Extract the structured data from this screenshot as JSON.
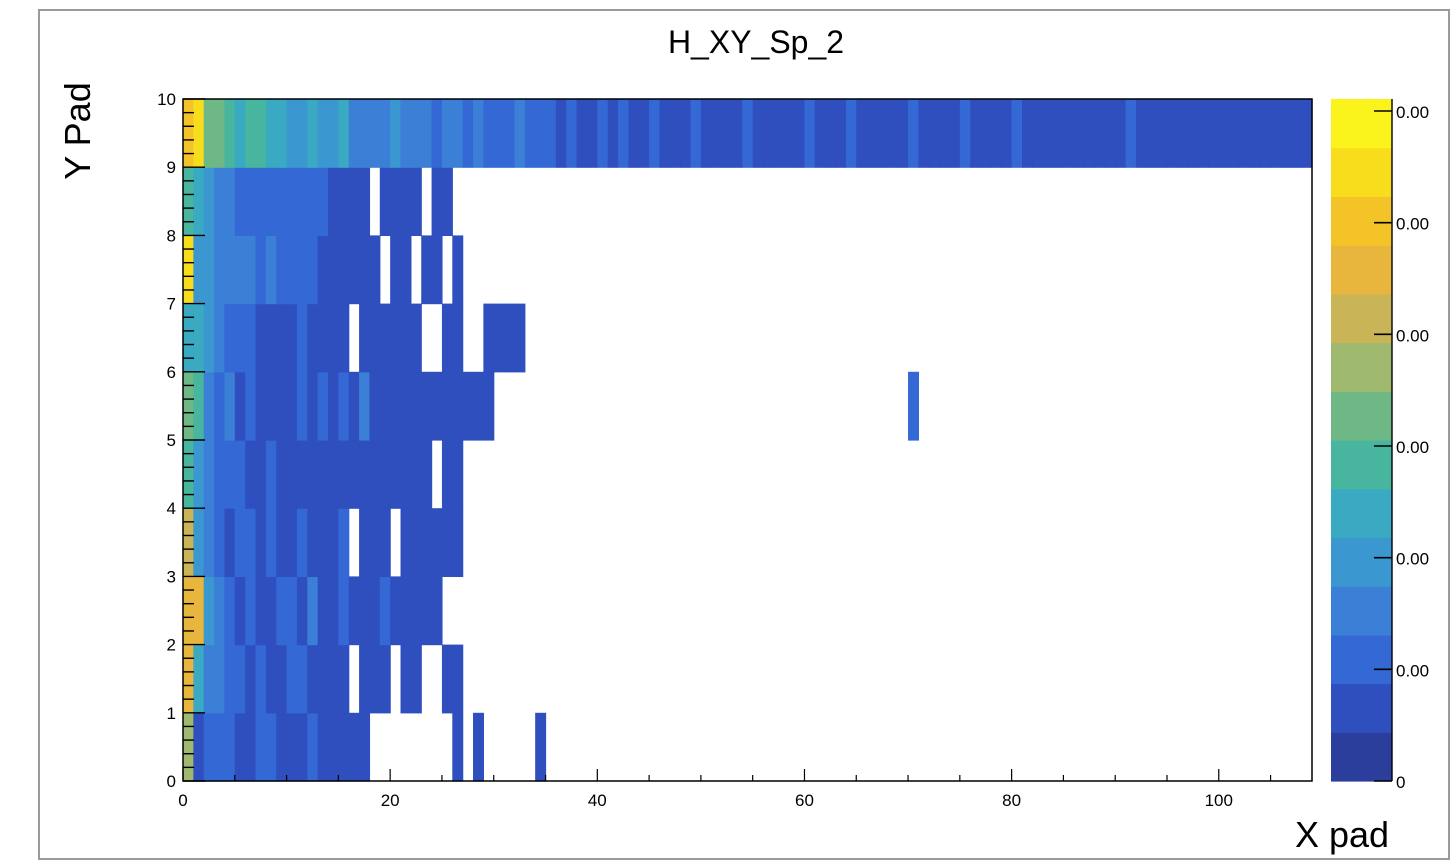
{
  "chart_data": {
    "type": "heatmap",
    "title": "H_XY_Sp_2",
    "xlabel": "X pad",
    "ylabel": "Y Pad",
    "x_range": [
      0,
      109
    ],
    "y_range": [
      0,
      10
    ],
    "x_ticks": [
      "0",
      "20",
      "40",
      "60",
      "80",
      "100"
    ],
    "y_ticks": [
      "0",
      "1",
      "2",
      "3",
      "4",
      "5",
      "6",
      "7",
      "8",
      "9",
      "10"
    ],
    "z_ticks": [
      "0",
      "0.00",
      "0.00",
      "0.00",
      "0.00",
      "0.00",
      "0.00"
    ],
    "colorscale": [
      "#2b3e9c",
      "#2f4fbe",
      "#3468d4",
      "#3b80d6",
      "#3b97cf",
      "#3aa9c2",
      "#48b69e",
      "#6db885",
      "#9fba6e",
      "#c9b457",
      "#e8b53d",
      "#f4c327",
      "#f8dd1c",
      "#fbf31c"
    ],
    "rows": [
      [
        8,
        1,
        2,
        2,
        2,
        1,
        1,
        2,
        2,
        1,
        1,
        1,
        2,
        1,
        1,
        1,
        1,
        1,
        0,
        0,
        0,
        0,
        0,
        0,
        0,
        0,
        1,
        0,
        1,
        0,
        0,
        0,
        0,
        0,
        1,
        0,
        0,
        0,
        0,
        0,
        0,
        0,
        0,
        0,
        0,
        0,
        0,
        0,
        0,
        0,
        0,
        0,
        0,
        0,
        0,
        0,
        0,
        0,
        0,
        0,
        0,
        0,
        0,
        0,
        0,
        0,
        0,
        0,
        0,
        0,
        0,
        0,
        0,
        0,
        0,
        0,
        0,
        0,
        0,
        0,
        0,
        0,
        0,
        0,
        0,
        0,
        0,
        0,
        0,
        0,
        0,
        0,
        0,
        0,
        0,
        0,
        0,
        0,
        0,
        0,
        0,
        0,
        0,
        0,
        0,
        0,
        0,
        0,
        0
      ],
      [
        10,
        5,
        3,
        3,
        2,
        2,
        1,
        2,
        1,
        1,
        2,
        2,
        1,
        1,
        1,
        1,
        0,
        1,
        1,
        1,
        0,
        1,
        1,
        0,
        0,
        1,
        1,
        0,
        0,
        0,
        0,
        0,
        0,
        0,
        0,
        0,
        0,
        0,
        0,
        0,
        0,
        0,
        0,
        0,
        0,
        0,
        0,
        0,
        0,
        0,
        0,
        0,
        0,
        0,
        0,
        0,
        0,
        0,
        0,
        0,
        0,
        0,
        0,
        0,
        0,
        0,
        0,
        0,
        0,
        0,
        0,
        0,
        0,
        0,
        0,
        0,
        0,
        0,
        0,
        0,
        0,
        0,
        0,
        0,
        0,
        0,
        0,
        0,
        0,
        0,
        0,
        0,
        0,
        0,
        0,
        0,
        0,
        0,
        0,
        0,
        0,
        0,
        0,
        0,
        0,
        0,
        0,
        0,
        0
      ],
      [
        10,
        10,
        4,
        3,
        2,
        1,
        2,
        1,
        1,
        2,
        2,
        1,
        3,
        1,
        1,
        2,
        1,
        1,
        1,
        2,
        1,
        1,
        1,
        1,
        1,
        0,
        0,
        0,
        0,
        0,
        0,
        0,
        0,
        0,
        0,
        0,
        0,
        0,
        0,
        0,
        0,
        0,
        0,
        0,
        0,
        0,
        0,
        0,
        0,
        0,
        0,
        0,
        0,
        0,
        0,
        0,
        0,
        0,
        0,
        0,
        0,
        0,
        0,
        0,
        0,
        0,
        0,
        0,
        0,
        0,
        0,
        0,
        0,
        0,
        0,
        0,
        0,
        0,
        0,
        0,
        0,
        0,
        0,
        0,
        0,
        0,
        0,
        0,
        0,
        0,
        0,
        0,
        0,
        0,
        0,
        0,
        0,
        0,
        0,
        0,
        0,
        0,
        0,
        0,
        0,
        0,
        0,
        0,
        0
      ],
      [
        9,
        4,
        3,
        2,
        1,
        2,
        2,
        1,
        2,
        1,
        1,
        2,
        1,
        1,
        1,
        2,
        0,
        1,
        1,
        1,
        0,
        1,
        1,
        1,
        1,
        1,
        1,
        0,
        0,
        0,
        0,
        0,
        0,
        0,
        0,
        0,
        0,
        0,
        0,
        0,
        0,
        0,
        0,
        0,
        0,
        0,
        0,
        0,
        0,
        0,
        0,
        0,
        0,
        0,
        0,
        0,
        0,
        0,
        0,
        0,
        0,
        0,
        0,
        0,
        0,
        0,
        0,
        0,
        0,
        0,
        0,
        0,
        0,
        0,
        0,
        0,
        0,
        0,
        0,
        0,
        0,
        0,
        0,
        0,
        0,
        0,
        0,
        0,
        0,
        0,
        0,
        0,
        0,
        0,
        0,
        0,
        0,
        0,
        0,
        0,
        0,
        0,
        0,
        0,
        0,
        0,
        0,
        0,
        0
      ],
      [
        6,
        4,
        3,
        2,
        2,
        2,
        1,
        1,
        2,
        1,
        1,
        1,
        1,
        1,
        1,
        1,
        1,
        1,
        1,
        1,
        1,
        1,
        1,
        1,
        0,
        1,
        1,
        0,
        0,
        0,
        0,
        0,
        0,
        0,
        0,
        0,
        0,
        0,
        0,
        0,
        0,
        0,
        0,
        0,
        0,
        0,
        0,
        0,
        0,
        0,
        0,
        0,
        0,
        0,
        0,
        0,
        0,
        0,
        0,
        0,
        0,
        0,
        0,
        0,
        0,
        0,
        0,
        0,
        0,
        0,
        0,
        0,
        0,
        0,
        0,
        0,
        0,
        0,
        0,
        0,
        0,
        0,
        0,
        0,
        0,
        0,
        0,
        0,
        0,
        0,
        0,
        0,
        0,
        0,
        0,
        0,
        0,
        0,
        0,
        0,
        0,
        0,
        0,
        0,
        0,
        0,
        0,
        0,
        0
      ],
      [
        7,
        6,
        3,
        2,
        3,
        1,
        2,
        1,
        1,
        1,
        1,
        2,
        1,
        2,
        1,
        2,
        1,
        3,
        1,
        1,
        1,
        1,
        1,
        1,
        1,
        1,
        1,
        1,
        1,
        1,
        0,
        0,
        0,
        0,
        0,
        0,
        0,
        0,
        0,
        0,
        0,
        0,
        0,
        0,
        0,
        0,
        0,
        0,
        0,
        0,
        0,
        0,
        0,
        0,
        0,
        0,
        0,
        0,
        0,
        0,
        0,
        0,
        0,
        0,
        0,
        0,
        0,
        0,
        0,
        0,
        2,
        0,
        0,
        0,
        0,
        0,
        0,
        0,
        0,
        0,
        0,
        0,
        0,
        0,
        0,
        0,
        0,
        0,
        0,
        0,
        0,
        0,
        0,
        0,
        0,
        0,
        0,
        0,
        0,
        0,
        0,
        0,
        0,
        0,
        0,
        0,
        0,
        0,
        0
      ],
      [
        5,
        5,
        4,
        3,
        2,
        2,
        2,
        1,
        1,
        1,
        1,
        2,
        1,
        1,
        1,
        1,
        0,
        1,
        1,
        1,
        1,
        1,
        1,
        0,
        0,
        1,
        1,
        0,
        0,
        1,
        1,
        1,
        1,
        0,
        0,
        0,
        0,
        0,
        0,
        0,
        0,
        0,
        0,
        0,
        0,
        0,
        0,
        0,
        0,
        0,
        0,
        0,
        0,
        0,
        0,
        0,
        0,
        0,
        0,
        0,
        0,
        0,
        0,
        0,
        0,
        0,
        0,
        0,
        0,
        0,
        0,
        0,
        0,
        0,
        0,
        0,
        0,
        0,
        0,
        0,
        0,
        0,
        0,
        0,
        0,
        0,
        0,
        0,
        0,
        0,
        0,
        0,
        0,
        0,
        0,
        0,
        0,
        0,
        0,
        0,
        0,
        0,
        0,
        0,
        0,
        0,
        0,
        0,
        0
      ],
      [
        12,
        4,
        4,
        3,
        3,
        3,
        3,
        2,
        3,
        2,
        2,
        2,
        2,
        1,
        1,
        1,
        1,
        1,
        1,
        0,
        1,
        1,
        0,
        1,
        1,
        0,
        1,
        0,
        0,
        0,
        0,
        0,
        0,
        0,
        0,
        0,
        0,
        0,
        0,
        0,
        0,
        0,
        0,
        0,
        0,
        0,
        0,
        0,
        0,
        0,
        0,
        0,
        0,
        0,
        0,
        0,
        0,
        0,
        0,
        0,
        0,
        0,
        0,
        0,
        0,
        0,
        0,
        0,
        0,
        0,
        0,
        0,
        0,
        0,
        0,
        0,
        0,
        0,
        0,
        0,
        0,
        0,
        0,
        0,
        0,
        0,
        0,
        0,
        0,
        0,
        0,
        0,
        0,
        0,
        0,
        0,
        0,
        0,
        0,
        0,
        0,
        0,
        0,
        0,
        0,
        0,
        0,
        0,
        0
      ],
      [
        6,
        5,
        4,
        3,
        3,
        2,
        2,
        2,
        2,
        2,
        2,
        2,
        2,
        2,
        1,
        1,
        1,
        1,
        0,
        1,
        1,
        1,
        1,
        0,
        1,
        1,
        0,
        0,
        0,
        0,
        0,
        0,
        0,
        0,
        0,
        0,
        0,
        0,
        0,
        0,
        0,
        0,
        0,
        0,
        0,
        0,
        0,
        0,
        0,
        0,
        0,
        0,
        0,
        0,
        0,
        0,
        0,
        0,
        0,
        0,
        0,
        0,
        0,
        0,
        0,
        0,
        0,
        0,
        0,
        0,
        0,
        0,
        0,
        0,
        0,
        0,
        0,
        0,
        0,
        0,
        0,
        0,
        0,
        0,
        0,
        0,
        0,
        0,
        0,
        0,
        0,
        0,
        0,
        0,
        0,
        0,
        0,
        0,
        0,
        0,
        0,
        0,
        0,
        0,
        0,
        0,
        0,
        0,
        0
      ],
      [
        11,
        12,
        7,
        7,
        6,
        5,
        6,
        6,
        5,
        5,
        4,
        4,
        5,
        4,
        4,
        5,
        3,
        3,
        3,
        3,
        4,
        3,
        3,
        3,
        2,
        3,
        3,
        2,
        3,
        2,
        2,
        2,
        3,
        2,
        2,
        2,
        1,
        2,
        1,
        1,
        2,
        1,
        2,
        1,
        1,
        2,
        1,
        1,
        1,
        2,
        1,
        1,
        1,
        1,
        2,
        1,
        1,
        1,
        1,
        1,
        2,
        1,
        1,
        1,
        2,
        1,
        1,
        1,
        1,
        1,
        2,
        1,
        1,
        1,
        1,
        2,
        1,
        1,
        1,
        1,
        2,
        1,
        1,
        1,
        1,
        1,
        1,
        1,
        1,
        1,
        1,
        2,
        1,
        1,
        1,
        1,
        1,
        1,
        1,
        1,
        1,
        1,
        1,
        1,
        1,
        1,
        1,
        1,
        1
      ]
    ],
    "zmax": 13
  }
}
